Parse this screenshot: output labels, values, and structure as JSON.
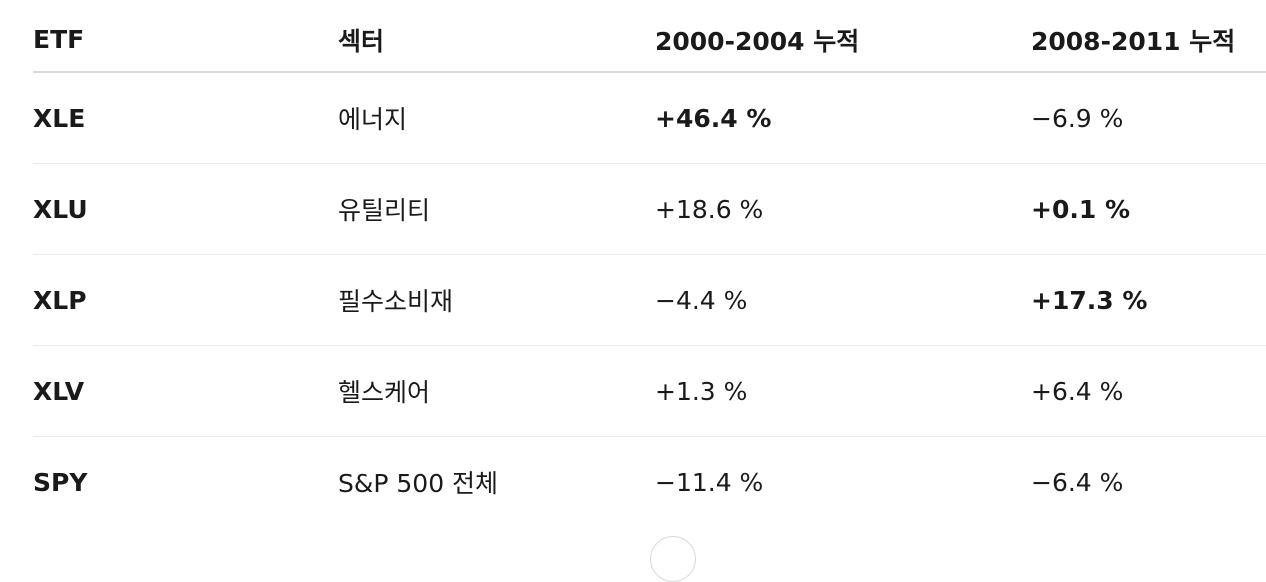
{
  "table": {
    "header": [
      "ETF",
      "섹터",
      "2000-2004 누적",
      "2008-2011 누적"
    ],
    "rows": [
      [
        "XLE",
        "에너지",
        "+46.4 %",
        "−6.9 %"
      ],
      [
        "XLU",
        "유틸리티",
        "+18.6 %",
        "+0.1 %"
      ],
      [
        "XLP",
        "필수소비재",
        "−4.4 %",
        "+17.3 %"
      ],
      [
        "XLV",
        "헬스케어",
        "+1.3 %",
        "+6.4 %"
      ],
      [
        "SPY",
        "S&P 500 전체",
        "−11.4 %",
        "−6.4 %"
      ]
    ]
  }
}
